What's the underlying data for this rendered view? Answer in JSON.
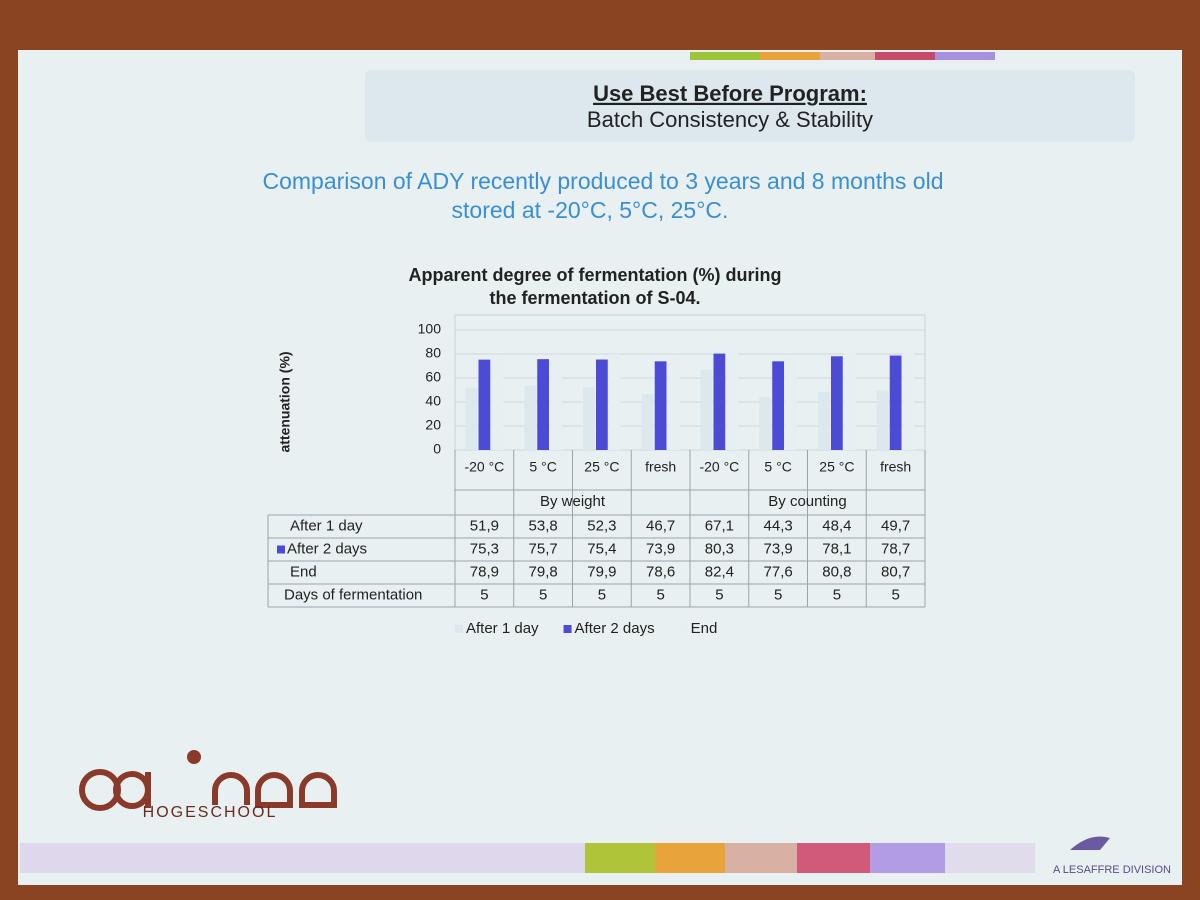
{
  "slide": {
    "title": "Use Best Before Program:",
    "subtitle": "Batch Consistency & Stability",
    "description": [
      "Comparison of ADY recently produced to 3 years and 8 months old",
      "stored at -20°C, 5°C, 25°C."
    ]
  },
  "chart_data": {
    "type": "bar",
    "title": [
      "Apparent degree of fermentation (%) during",
      "the fermentation of S-04."
    ],
    "y_label": "attenuation (%)",
    "categories": [
      "-20 °C",
      "5 °C",
      "25 °C",
      "fresh",
      "-20 °C",
      "5 °C",
      "25 °C",
      "fresh"
    ],
    "group_labels": [
      "By weight",
      "By counting"
    ],
    "ylim": [
      0,
      100
    ],
    "yticks": [
      0,
      20,
      40,
      60,
      80,
      100
    ],
    "grid": true,
    "series": [
      {
        "name": "After 1 day",
        "color": "#dce8ee",
        "values": [
          51.9,
          53.8,
          52.3,
          46.7,
          67.1,
          44.3,
          48.4,
          49.7
        ],
        "value_labels": [
          "51,9",
          "53,8",
          "52,3",
          "46,7",
          "67,1",
          "44,3",
          "48,4",
          "49,7"
        ]
      },
      {
        "name": "After 2 days",
        "color": "#4b4bd6",
        "values": [
          75.3,
          75.7,
          75.4,
          73.9,
          80.3,
          73.9,
          78.1,
          78.7
        ],
        "value_labels": [
          "75,3",
          "75,7",
          "75,4",
          "73,9",
          "80,3",
          "73,9",
          "78,1",
          "78,7"
        ]
      },
      {
        "name": "End",
        "color": "#e6eff2",
        "values": [
          78.9,
          79.8,
          79.9,
          78.6,
          82.4,
          77.6,
          80.8,
          80.7
        ],
        "value_labels": [
          "78,9",
          "79,8",
          "79,9",
          "78,6",
          "82,4",
          "77,6",
          "80,8",
          "80,7"
        ]
      }
    ],
    "extra_rows": [
      {
        "name": "Days of fermentation",
        "values": [
          5,
          5,
          5,
          5,
          5,
          5,
          5,
          5
        ]
      }
    ]
  },
  "footer": {
    "school": "HOGESCHOOL",
    "division": "A LESAFFRE DIVISION"
  }
}
